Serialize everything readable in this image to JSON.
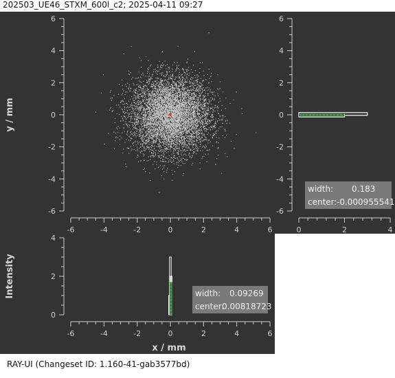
{
  "window": {
    "title": "202503_UE46_STXM_600l_c2; 2025-04-11 09:27",
    "footer": "RAY-UI (Changeset ID: 1.160-41-gab3577bd)"
  },
  "colors": {
    "panel_bg": "#333333",
    "points": "#c8c8c8",
    "center_marker": "#e03a1a",
    "hist_green": "#4caf50",
    "stats_box": "#7a7a7a"
  },
  "chart_data": [
    {
      "name": "scatter-main",
      "type": "scatter",
      "xlabel": "",
      "ylabel": "y / mm",
      "xlim": [
        -6,
        6
      ],
      "ylim": [
        -6,
        6
      ],
      "xticks": [
        "-6",
        "-4",
        "-2",
        "0",
        "2",
        "4",
        "6"
      ],
      "yticks": [
        "6",
        "4",
        "2",
        "0",
        "-2",
        "-4",
        "-6"
      ],
      "distribution": {
        "center": [
          0,
          0
        ],
        "sigma": 1.2,
        "count": 9000
      },
      "center_marker": [
        0,
        0
      ]
    },
    {
      "name": "y-profile",
      "type": "bar",
      "orientation": "horizontal",
      "xlim": [
        0,
        4
      ],
      "ylim": [
        -6,
        6
      ],
      "xticks": [
        "0",
        "2",
        "4"
      ],
      "yticks": [
        "6",
        "4",
        "2",
        "0",
        "-2",
        "-4",
        "-6"
      ],
      "bars": [
        {
          "y": 0.05,
          "value": 3.0
        },
        {
          "y": -0.05,
          "value": 2.0
        }
      ],
      "gauss_peak": 2.0,
      "stats": {
        "width_label": "width:",
        "width": "0.183",
        "center_label": "center:",
        "center": "-0.000955541"
      }
    },
    {
      "name": "x-profile",
      "type": "bar",
      "xlabel": "x / mm",
      "ylabel": "Intensity",
      "xlim": [
        -6,
        6
      ],
      "ylim": [
        0,
        4
      ],
      "xticks": [
        "-6",
        "-4",
        "-2",
        "0",
        "2",
        "4",
        "6"
      ],
      "yticks": [
        "4",
        "2",
        "0"
      ],
      "bars": [
        {
          "x": 0.0,
          "value": 3.0
        },
        {
          "x": 0.05,
          "value": 2.0
        },
        {
          "x": -0.05,
          "value": 1.0
        }
      ],
      "gauss_peak": 1.7,
      "stats": {
        "width_label": "width:",
        "width": "0.09269",
        "center_label": "center:",
        "center": "0.00818723"
      }
    }
  ]
}
